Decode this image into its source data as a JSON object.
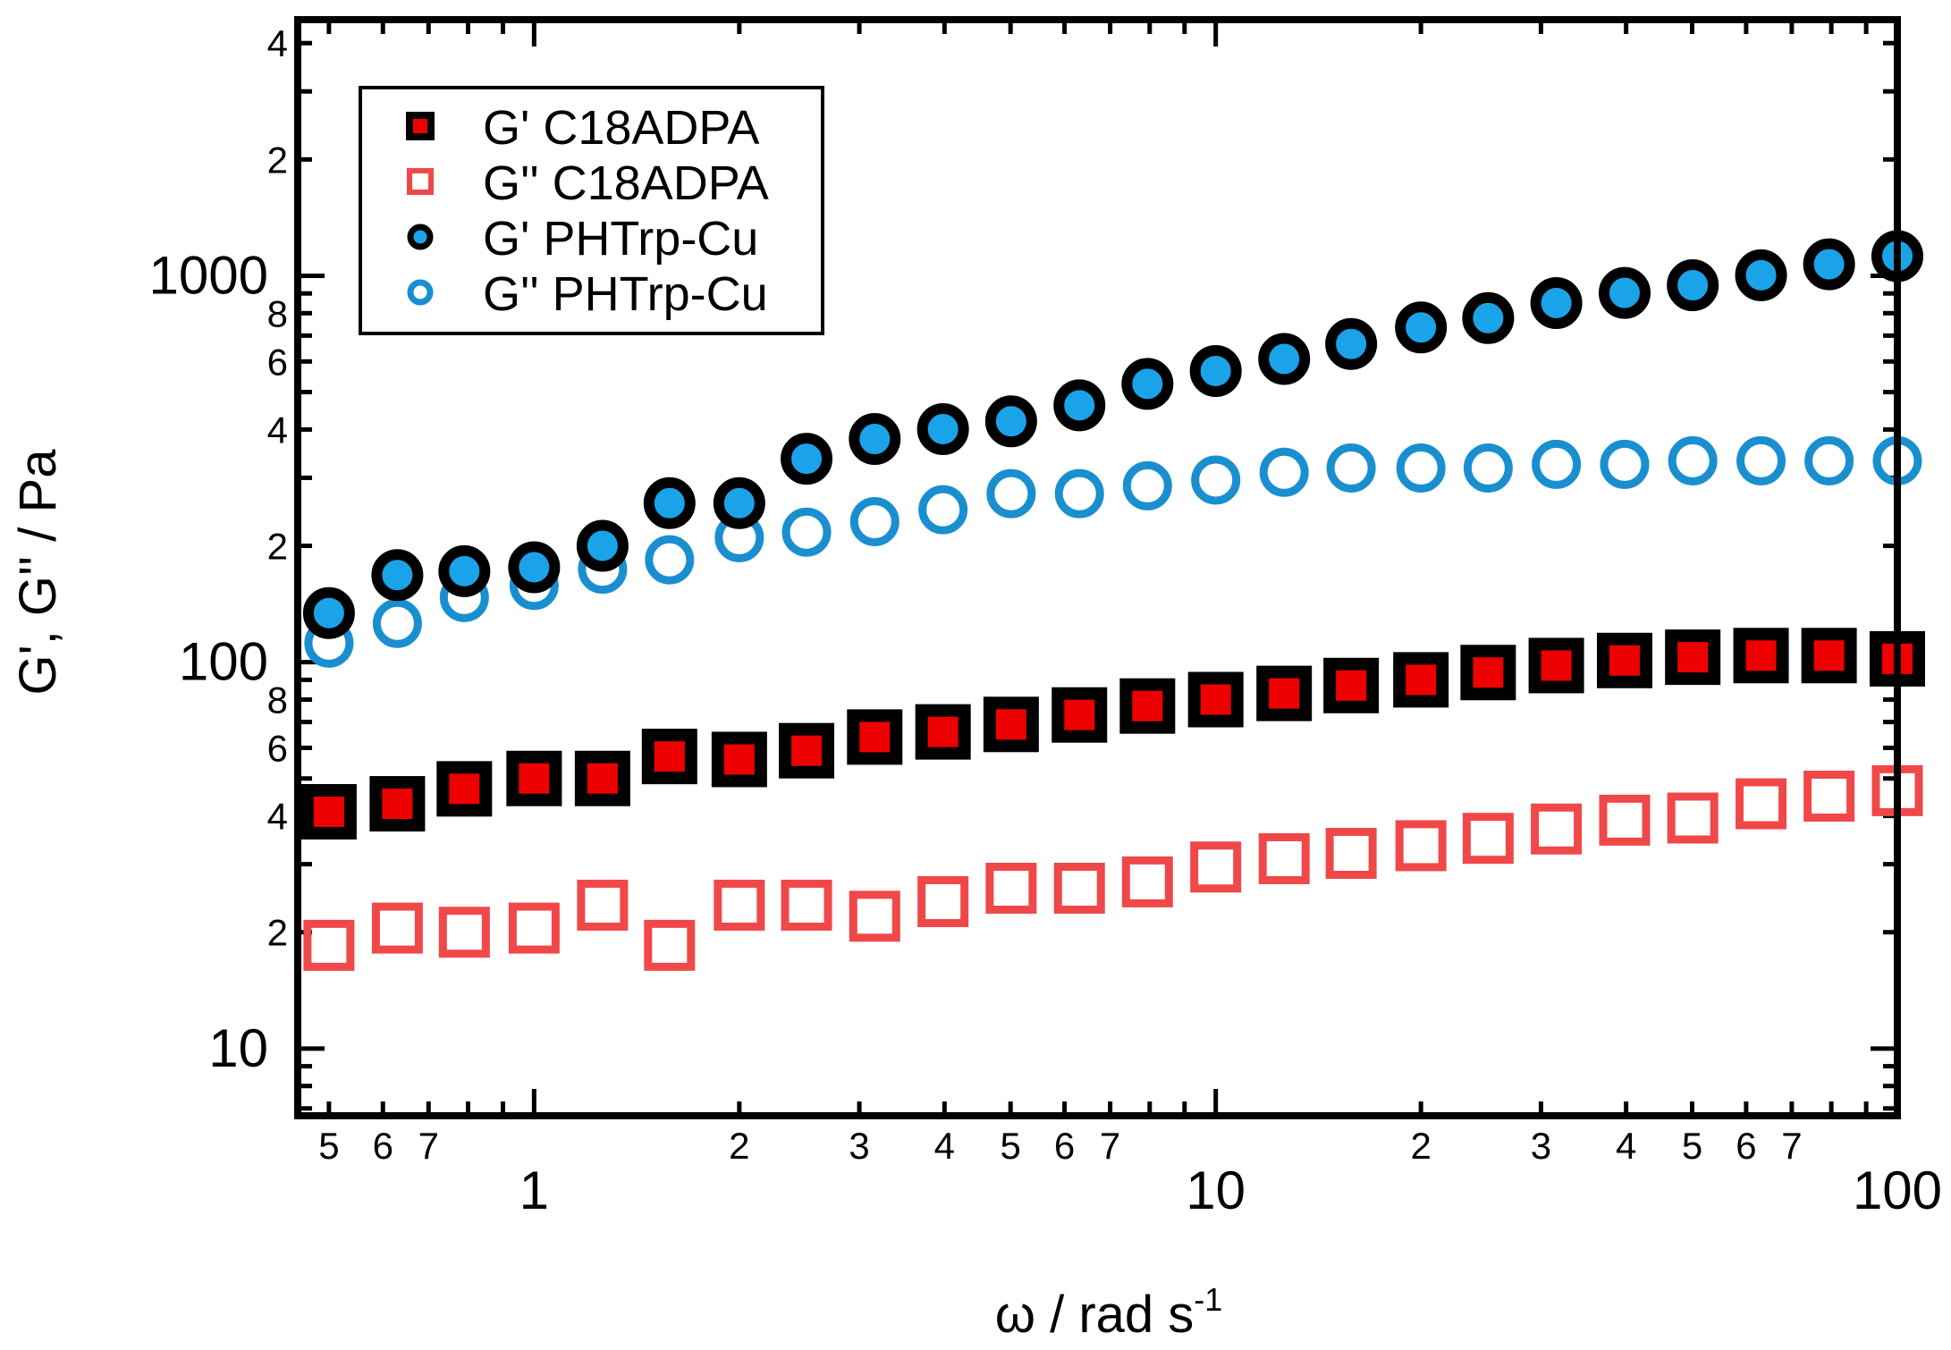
{
  "chart_data": {
    "type": "scatter",
    "title": "",
    "xlabel": "ω / rad s",
    "xlabel_superscript": "-1",
    "ylabel": "G', G'' / Pa",
    "xscale": "log",
    "yscale": "log",
    "xlim": [
      0.45,
      100
    ],
    "ylim": [
      6.7,
      4600
    ],
    "x_major_ticks": [
      {
        "value": 1,
        "label": "1"
      },
      {
        "value": 10,
        "label": "10"
      },
      {
        "value": 100,
        "label": "100"
      }
    ],
    "x_minor_ticks": [
      {
        "value": 0.5,
        "label": "5"
      },
      {
        "value": 0.6,
        "label": "6"
      },
      {
        "value": 0.7,
        "label": "7"
      },
      {
        "value": 0.8,
        "label": ""
      },
      {
        "value": 0.9,
        "label": ""
      },
      {
        "value": 2,
        "label": "2"
      },
      {
        "value": 3,
        "label": "3"
      },
      {
        "value": 4,
        "label": "4"
      },
      {
        "value": 5,
        "label": "5"
      },
      {
        "value": 6,
        "label": "6"
      },
      {
        "value": 7,
        "label": "7"
      },
      {
        "value": 8,
        "label": ""
      },
      {
        "value": 9,
        "label": ""
      },
      {
        "value": 20,
        "label": "2"
      },
      {
        "value": 30,
        "label": "3"
      },
      {
        "value": 40,
        "label": "4"
      },
      {
        "value": 50,
        "label": "5"
      },
      {
        "value": 60,
        "label": "6"
      },
      {
        "value": 70,
        "label": "7"
      },
      {
        "value": 80,
        "label": ""
      },
      {
        "value": 90,
        "label": ""
      }
    ],
    "y_major_ticks": [
      {
        "value": 10,
        "label": "10"
      },
      {
        "value": 100,
        "label": "100"
      },
      {
        "value": 1000,
        "label": "1000"
      }
    ],
    "y_minor_ticks": [
      {
        "value": 7,
        "label": ""
      },
      {
        "value": 8,
        "label": ""
      },
      {
        "value": 9,
        "label": ""
      },
      {
        "value": 20,
        "label": "2"
      },
      {
        "value": 30,
        "label": ""
      },
      {
        "value": 40,
        "label": "4"
      },
      {
        "value": 50,
        "label": ""
      },
      {
        "value": 60,
        "label": "6"
      },
      {
        "value": 70,
        "label": ""
      },
      {
        "value": 80,
        "label": "8"
      },
      {
        "value": 90,
        "label": ""
      },
      {
        "value": 200,
        "label": "2"
      },
      {
        "value": 300,
        "label": ""
      },
      {
        "value": 400,
        "label": "4"
      },
      {
        "value": 500,
        "label": ""
      },
      {
        "value": 600,
        "label": "6"
      },
      {
        "value": 700,
        "label": ""
      },
      {
        "value": 800,
        "label": "8"
      },
      {
        "value": 900,
        "label": ""
      },
      {
        "value": 2000,
        "label": "2"
      },
      {
        "value": 3000,
        "label": ""
      },
      {
        "value": 4000,
        "label": "4"
      }
    ],
    "x": [
      0.5,
      0.63,
      0.79,
      1.0,
      1.26,
      1.58,
      2.0,
      2.51,
      3.16,
      3.98,
      5.01,
      6.31,
      7.94,
      10.0,
      12.6,
      15.8,
      20.0,
      25.1,
      31.6,
      39.8,
      50.1,
      63.1,
      79.4,
      100.0
    ],
    "series": [
      {
        "name": "G' C18ADPA",
        "marker": "square-filled",
        "edge_color": "#000000",
        "fill_color": "#ee0000",
        "values": [
          41,
          43,
          47,
          50,
          50,
          57,
          56,
          59,
          64,
          66,
          69,
          73,
          77,
          80,
          83,
          87,
          90,
          94,
          98,
          101,
          103,
          104,
          104,
          102
        ]
      },
      {
        "name": "G'' C18ADPA",
        "marker": "square-open",
        "edge_color": "#f04848",
        "fill_color": "none",
        "values": [
          18.5,
          20.5,
          20,
          20.5,
          23.5,
          18.5,
          23.5,
          23.5,
          22,
          24,
          26,
          26,
          27,
          29.5,
          31,
          32,
          33.5,
          35,
          37,
          39,
          39.5,
          43,
          45,
          46.5
        ]
      },
      {
        "name": "G' PHTrp-Cu",
        "marker": "circle-filled",
        "edge_color": "#000000",
        "fill_color": "#1aa3e8",
        "values": [
          134,
          168,
          172,
          176,
          200,
          258,
          258,
          336,
          378,
          401,
          420,
          462,
          525,
          567,
          609,
          666,
          735,
          777,
          850,
          903,
          945,
          1003,
          1071,
          1124
        ]
      },
      {
        "name": "G'' PHTrp-Cu",
        "marker": "circle-open",
        "edge_color": "#1a8fd0",
        "fill_color": "none",
        "values": [
          112,
          126,
          147,
          158,
          174,
          184,
          210,
          217,
          231,
          248,
          273,
          273,
          286,
          296,
          310,
          318,
          318,
          318,
          325,
          325,
          332,
          332,
          332,
          332
        ]
      }
    ],
    "legend_position": "top-left"
  }
}
